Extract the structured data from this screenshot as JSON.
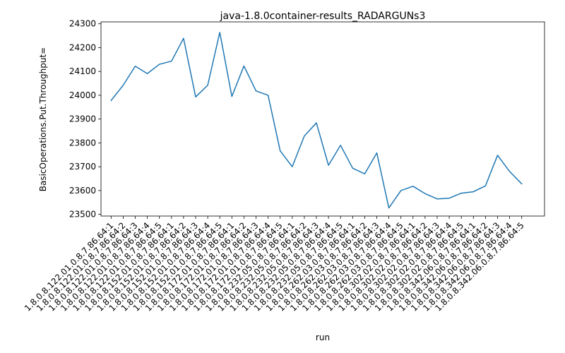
{
  "chart_data": {
    "type": "line",
    "title": "java-1.8.0container-results_RADARGUNs3",
    "xlabel": "run",
    "ylabel": "BasicOperations.Put.Throughput=",
    "ylim": [
      23493,
      24308
    ],
    "yticks": [
      23500,
      23600,
      23700,
      23800,
      23900,
      24000,
      24100,
      24200,
      24300
    ],
    "grid": false,
    "line_color": "#1f77b4",
    "categories": [
      "1.8.0.8.122.01.0.8.7.86.64:1",
      "1.8.0.8.122.01.0.8.7.86.64:2",
      "1.8.0.8.122.01.0.8.7.86.64:3",
      "1.8.0.8.122.01.0.8.7.86.64:4",
      "1.8.0.8.122.01.0.8.7.86.64:5",
      "1.8.0.8.152.01.0.8.7.86.64:1",
      "1.8.0.8.152.01.0.8.7.86.64:2",
      "1.8.0.8.152.01.0.8.7.86.64:3",
      "1.8.0.8.152.01.0.8.7.86.64:4",
      "1.8.0.8.152.01.0.8.7.86.64:5",
      "1.8.0.8.172.01.0.8.7.86.64:1",
      "1.8.0.8.172.01.0.8.7.86.64:2",
      "1.8.0.8.172.01.0.8.7.86.64:3",
      "1.8.0.8.172.01.0.8.7.86.64:4",
      "1.8.0.8.172.01.0.8.7.86.64:5",
      "1.8.0.8.232.05.0.8.7.86.64:1",
      "1.8.0.8.232.05.0.8.7.86.64:2",
      "1.8.0.8.232.05.0.8.7.86.64:3",
      "1.8.0.8.232.05.0.8.7.86.64:4",
      "1.8.0.8.232.05.0.8.7.86.64:5",
      "1.8.0.8.262.03.0.8.7.86.64:1",
      "1.8.0.8.262.03.0.8.7.86.64:2",
      "1.8.0.8.262.03.0.8.7.86.64:3",
      "1.8.0.8.262.03.0.8.7.86.64:4",
      "1.8.0.8.262.03.0.8.7.86.64:5",
      "1.8.0.8.302.02.0.8.7.86.64:1",
      "1.8.0.8.302.02.0.8.7.86.64:2",
      "1.8.0.8.302.02.0.8.7.86.64:3",
      "1.8.0.8.302.02.0.8.7.86.64:4",
      "1.8.0.8.302.02.0.8.7.86.64:5",
      "1.8.0.8.342.06.0.8.7.86.64:1",
      "1.8.0.8.342.06.0.8.7.86.64:2",
      "1.8.0.8.342.06.0.8.7.86.64:3",
      "1.8.0.8.342.06.0.8.7.86.64:4",
      "1.8.0.8.342.06.0.8.7.86.64:5"
    ],
    "values": [
      23978,
      24042,
      24122,
      24091,
      24130,
      24143,
      24239,
      23993,
      24042,
      24264,
      23995,
      24123,
      24018,
      24000,
      23767,
      23700,
      23829,
      23884,
      23706,
      23790,
      23694,
      23670,
      23758,
      23527,
      23600,
      23618,
      23587,
      23565,
      23568,
      23589,
      23595,
      23620,
      23748,
      23680,
      23628
    ]
  }
}
